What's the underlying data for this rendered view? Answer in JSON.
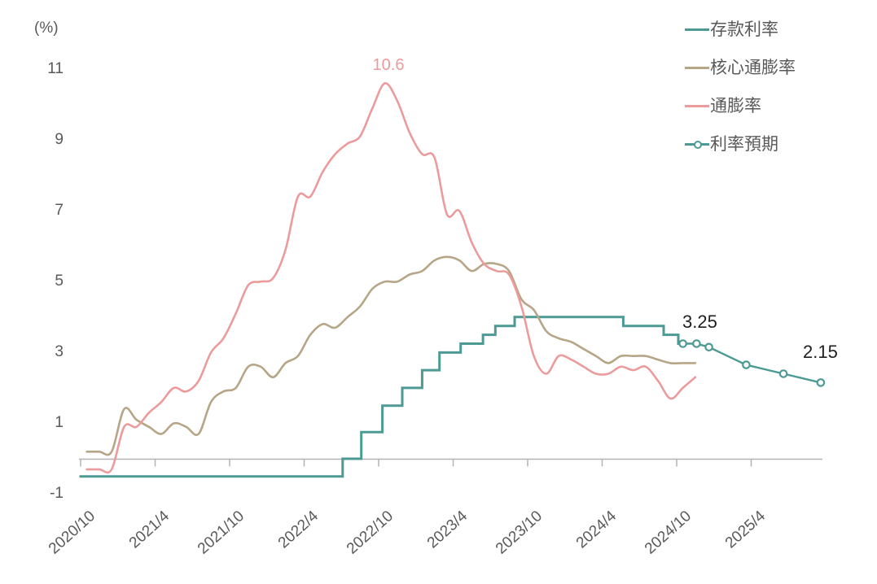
{
  "chart_data": {
    "type": "line",
    "description_note": "Euro-area rates and inflation, monthly from 2020/10; units percent",
    "colors": {
      "deposit_rate": "#4d9a94",
      "core_inflation": "#b6a687",
      "inflation": "#ec9b9c",
      "rate_expectation": "#4d9a94",
      "axis": "#b3b3b3",
      "tick_text": "#595959",
      "annotation_dark": "#1f1f1f"
    },
    "x_axis": {
      "start_month": "2020/10",
      "tick_labels": [
        "2020/10",
        "2021/4",
        "2021/10",
        "2022/4",
        "2022/10",
        "2023/4",
        "2023/10",
        "2024/4",
        "2024/10",
        "2025/4"
      ],
      "tick_months": [
        0,
        6,
        12,
        18,
        24,
        30,
        36,
        42,
        48,
        54
      ]
    },
    "y_axis": {
      "unit": "(%)",
      "tick_labels": [
        "11",
        "9",
        "7",
        "5",
        "3",
        "1",
        "-1"
      ],
      "tick_values": [
        11,
        9,
        7,
        5,
        3,
        1,
        -1
      ],
      "range": [
        -1,
        11
      ],
      "grid": false
    },
    "legend_position": "top-right",
    "series": [
      {
        "name": "存款利率",
        "key": "deposit_rate",
        "type": "step",
        "color": "#4d9a94",
        "changes": [
          [
            -0.1,
            -0.5
          ],
          [
            21.1,
            0.0
          ],
          [
            22.6,
            0.75
          ],
          [
            24.3,
            1.5
          ],
          [
            25.9,
            2.0
          ],
          [
            27.5,
            2.5
          ],
          [
            28.9,
            3.0
          ],
          [
            30.6,
            3.25
          ],
          [
            32.4,
            3.5
          ],
          [
            33.4,
            3.75
          ],
          [
            34.95,
            4.0
          ],
          [
            43.7,
            3.75
          ],
          [
            46.95,
            3.5
          ],
          [
            48.13,
            3.25
          ]
        ],
        "end_month": 48.5,
        "end_value": 3.25
      },
      {
        "name": "核心通膨率",
        "key": "core_inflation",
        "type": "smooth",
        "color": "#b6a687",
        "values": [
          0.2,
          0.2,
          0.2,
          1.4,
          1.1,
          0.9,
          0.7,
          1.0,
          0.9,
          0.7,
          1.6,
          1.9,
          2.0,
          2.6,
          2.6,
          2.3,
          2.7,
          2.9,
          3.5,
          3.8,
          3.7,
          4.0,
          4.3,
          4.8,
          5.0,
          5.0,
          5.2,
          5.3,
          5.6,
          5.7,
          5.6,
          5.3,
          5.5,
          5.5,
          5.3,
          4.5,
          4.2,
          3.6,
          3.4,
          3.3,
          3.1,
          2.9,
          2.7,
          2.9,
          2.9,
          2.9,
          2.8,
          2.7,
          2.7,
          2.7
        ]
      },
      {
        "name": "通膨率",
        "key": "inflation",
        "type": "smooth",
        "color": "#ec9b9c",
        "values": [
          -0.3,
          -0.3,
          -0.3,
          0.9,
          0.9,
          1.3,
          1.6,
          2.0,
          1.9,
          2.2,
          3.0,
          3.4,
          4.1,
          4.9,
          5.0,
          5.1,
          5.9,
          7.4,
          7.4,
          8.1,
          8.6,
          8.9,
          9.1,
          9.9,
          10.6,
          10.1,
          9.2,
          8.6,
          8.5,
          6.9,
          7.0,
          6.1,
          5.5,
          5.3,
          5.2,
          4.3,
          2.9,
          2.4,
          2.9,
          2.8,
          2.6,
          2.4,
          2.4,
          2.6,
          2.5,
          2.6,
          2.2,
          1.7,
          2.0,
          2.3
        ]
      },
      {
        "name": "利率預期",
        "key": "rate_expectation",
        "type": "marker-line",
        "color": "#4d9a94",
        "points": [
          [
            48.5,
            3.25
          ],
          [
            49.6,
            3.25
          ],
          [
            50.6,
            3.15
          ],
          [
            53.6,
            2.65
          ],
          [
            56.6,
            2.4
          ],
          [
            59.6,
            2.15
          ]
        ]
      }
    ],
    "annotations": [
      {
        "text": "10.6",
        "series": "inflation",
        "color": "#ec9b9c"
      },
      {
        "text": "3.25",
        "series": "deposit_rate",
        "color": "#1f1f1f"
      },
      {
        "text": "2.15",
        "series": "rate_expectation",
        "color": "#1f1f1f"
      }
    ]
  }
}
